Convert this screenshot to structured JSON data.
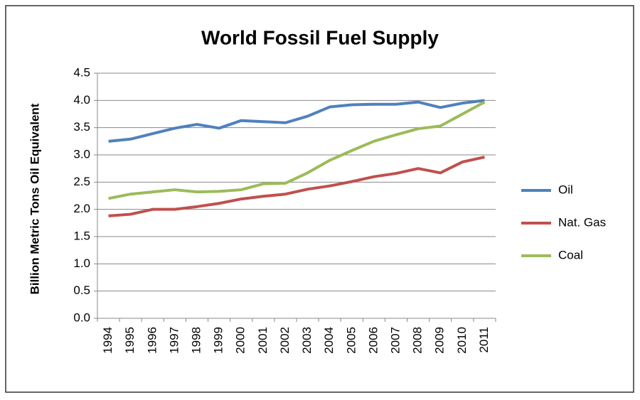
{
  "chart_data": {
    "type": "line",
    "title": "World Fossil Fuel Supply",
    "y_label": "Billion Metric Tons Oil Equivalent",
    "categories": [
      "1994",
      "1995",
      "1996",
      "1997",
      "1998",
      "1999",
      "2000",
      "2001",
      "2002",
      "2003",
      "2004",
      "2005",
      "2006",
      "2007",
      "2008",
      "2009",
      "2010",
      "2011"
    ],
    "series": [
      {
        "name": "Oil",
        "color": "#4f81bd",
        "values": [
          3.25,
          3.29,
          3.39,
          3.49,
          3.56,
          3.49,
          3.63,
          3.61,
          3.59,
          3.71,
          3.88,
          3.92,
          3.93,
          3.93,
          3.97,
          3.87,
          3.95,
          4.0
        ]
      },
      {
        "name": "Nat. Gas",
        "color": "#c0504d",
        "values": [
          1.88,
          1.91,
          2.0,
          2.0,
          2.05,
          2.11,
          2.19,
          2.24,
          2.28,
          2.37,
          2.43,
          2.51,
          2.6,
          2.66,
          2.75,
          2.67,
          2.87,
          2.96
        ]
      },
      {
        "name": "Coal",
        "color": "#9bbb59",
        "values": [
          2.2,
          2.28,
          2.32,
          2.36,
          2.32,
          2.33,
          2.36,
          2.47,
          2.48,
          2.67,
          2.9,
          3.08,
          3.25,
          3.37,
          3.48,
          3.53,
          3.75,
          3.97
        ]
      }
    ],
    "ylim": [
      0,
      4.5
    ],
    "yticks": [
      {
        "value": 0,
        "label": "0.0"
      },
      0.5,
      {
        "value": 1,
        "label": "1.0"
      },
      1.5,
      {
        "value": 2,
        "label": "2.0"
      },
      2.5,
      {
        "value": 3,
        "label": "3.0"
      },
      3.5,
      {
        "value": 4,
        "label": "4.0"
      },
      4.5
    ],
    "grid": true,
    "legend": "right"
  }
}
